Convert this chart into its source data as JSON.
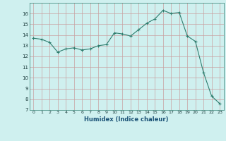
{
  "x": [
    0,
    1,
    2,
    3,
    4,
    5,
    6,
    7,
    8,
    9,
    10,
    11,
    12,
    13,
    14,
    15,
    16,
    17,
    18,
    19,
    20,
    21,
    22,
    23
  ],
  "y": [
    13.7,
    13.6,
    13.3,
    12.4,
    12.7,
    12.8,
    12.6,
    12.7,
    13.0,
    13.1,
    14.2,
    14.1,
    13.9,
    14.5,
    15.1,
    15.5,
    16.3,
    16.0,
    16.1,
    13.9,
    13.4,
    10.5,
    8.3,
    7.6
  ],
  "xlabel": "Humidex (Indice chaleur)",
  "ylim": [
    7,
    17
  ],
  "xlim": [
    -0.5,
    23.5
  ],
  "yticks": [
    7,
    8,
    9,
    10,
    11,
    12,
    13,
    14,
    15,
    16
  ],
  "xticks": [
    0,
    1,
    2,
    3,
    4,
    5,
    6,
    7,
    8,
    9,
    10,
    11,
    12,
    13,
    14,
    15,
    16,
    17,
    18,
    19,
    20,
    21,
    22,
    23
  ],
  "line_color": "#2e7d6e",
  "marker": "+",
  "bg_color": "#cff0ef",
  "grid_color_major": "#c8a0a0",
  "xlabel_color": "#1a5276"
}
